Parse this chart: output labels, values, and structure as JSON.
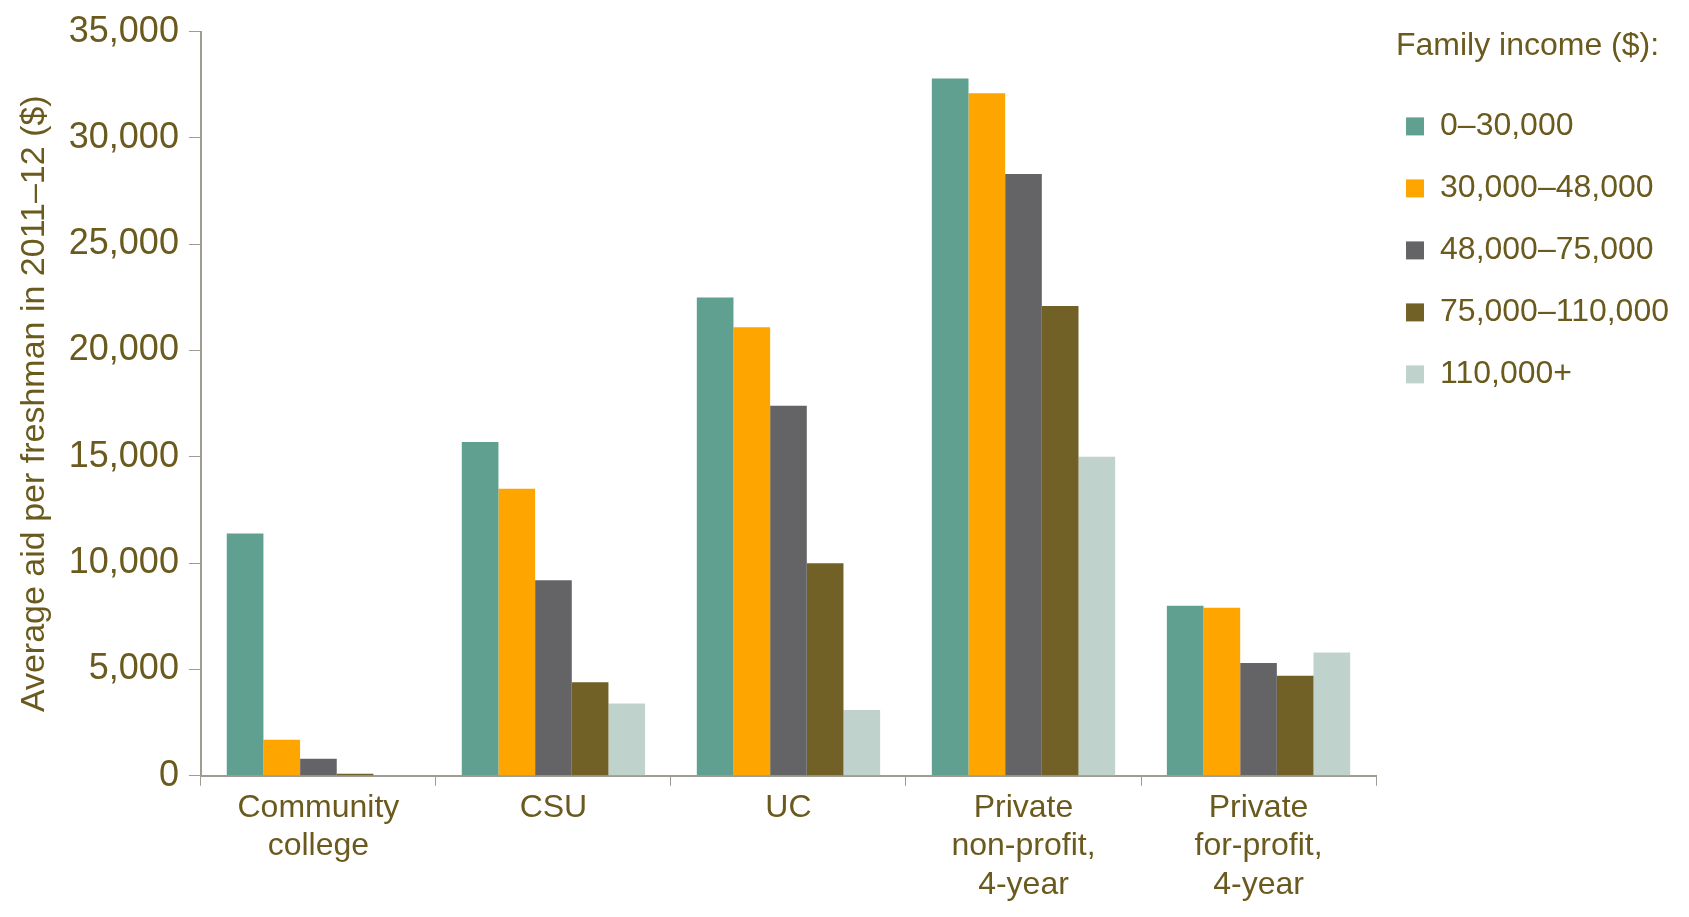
{
  "chart_data": {
    "type": "bar",
    "ylabel": "Average aid per freshman in 2011–12 ($)",
    "legend_title": "Family income ($):",
    "categories": [
      "Community college",
      "CSU",
      "UC",
      "Private non-profit, 4-year",
      "Private for-profit, 4-year"
    ],
    "series": [
      {
        "name": "0–30,000",
        "color": "#5fa090",
        "values": [
          11400,
          15700,
          22500,
          32800,
          8000
        ]
      },
      {
        "name": "30,000–48,000",
        "color": "#ffa500",
        "values": [
          1700,
          13500,
          21100,
          32100,
          7900
        ]
      },
      {
        "name": "48,000–75,000",
        "color": "#646466",
        "values": [
          800,
          9200,
          17400,
          28300,
          5300
        ]
      },
      {
        "name": "75,000–110,000",
        "color": "#716126",
        "values": [
          100,
          4400,
          10000,
          22100,
          4700
        ]
      },
      {
        "name": "110,000+",
        "color": "#bfd3cc",
        "values": [
          0,
          3400,
          3100,
          15000,
          5800
        ]
      }
    ],
    "ylim": [
      0,
      35000
    ],
    "yticks": [
      0,
      {
        "value": 5000,
        "label": "5,000"
      },
      {
        "value": 10000,
        "label": "10,000"
      },
      {
        "value": 15000,
        "label": "15,000"
      },
      {
        "value": 20000,
        "label": "20,000"
      },
      {
        "value": 25000,
        "label": "25,000"
      },
      {
        "value": 30000,
        "label": "30,000"
      },
      {
        "value": 35000,
        "label": "35,000"
      }
    ],
    "grid": false,
    "legend": "top right"
  }
}
